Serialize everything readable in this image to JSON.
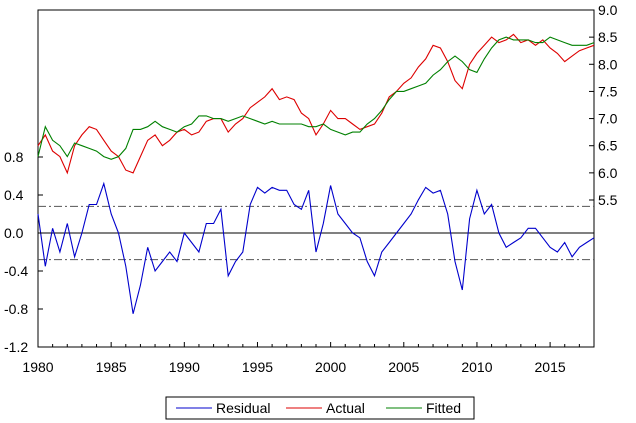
{
  "chart_data": {
    "type": "line",
    "title": "",
    "xlabel": "",
    "ylabel": "",
    "x_range": [
      1980,
      2018
    ],
    "x_ticks": [
      1980,
      1985,
      1990,
      1995,
      2000,
      2005,
      2010,
      2015
    ],
    "x_tick_labels": [
      "1980",
      "1985",
      "1990",
      "1995",
      "2000",
      "2005",
      "2010",
      "2015"
    ],
    "left_axis": {
      "range": [
        -1.2,
        0.8
      ],
      "ticks": [
        -1.2,
        -0.8,
        -0.4,
        0.0,
        0.4,
        0.8
      ],
      "tick_labels": [
        "-1.2",
        "-0.8",
        "-0.4",
        "0.0",
        "0.4",
        "0.8"
      ]
    },
    "right_axis": {
      "range": [
        5.5,
        9.0
      ],
      "ticks": [
        5.5,
        6.0,
        6.5,
        7.0,
        7.5,
        8.0,
        8.5,
        9.0
      ],
      "tick_labels": [
        "5.5",
        "6.0",
        "6.5",
        "7.0",
        "7.5",
        "8.0",
        "8.5",
        "9.0"
      ]
    },
    "reference_lines": [
      {
        "axis": "left",
        "value": 0.0,
        "style": "solid"
      },
      {
        "axis": "left",
        "value": 0.28,
        "style": "dashdot"
      },
      {
        "axis": "left",
        "value": -0.28,
        "style": "dashdot"
      }
    ],
    "grid": false,
    "legend_position": "bottom-center",
    "series": [
      {
        "name": "Residual",
        "axis": "left",
        "color": "#0000cc",
        "x": [
          1980.0,
          1980.5,
          1981.0,
          1981.5,
          1982.0,
          1982.5,
          1983.0,
          1983.5,
          1984.0,
          1984.5,
          1985.0,
          1985.5,
          1986.0,
          1986.5,
          1987.0,
          1987.5,
          1988.0,
          1988.5,
          1989.0,
          1989.5,
          1990.0,
          1990.5,
          1991.0,
          1991.5,
          1992.0,
          1992.5,
          1993.0,
          1993.5,
          1994.0,
          1994.5,
          1995.0,
          1995.5,
          1996.0,
          1996.5,
          1997.0,
          1997.5,
          1998.0,
          1998.5,
          1999.0,
          1999.5,
          2000.0,
          2000.5,
          2001.0,
          2001.5,
          2002.0,
          2002.5,
          2003.0,
          2003.5,
          2004.0,
          2004.5,
          2005.0,
          2005.5,
          2006.0,
          2006.5,
          2007.0,
          2007.5,
          2008.0,
          2008.5,
          2009.0,
          2009.5,
          2010.0,
          2010.5,
          2011.0,
          2011.5,
          2012.0,
          2012.5,
          2013.0,
          2013.5,
          2014.0,
          2014.5,
          2015.0,
          2015.5,
          2016.0,
          2016.5,
          2017.0,
          2017.5,
          2018.0
        ],
        "values": [
          0.2,
          -0.35,
          0.05,
          -0.2,
          0.1,
          -0.25,
          0.0,
          0.3,
          0.3,
          0.52,
          0.2,
          0.0,
          -0.35,
          -0.85,
          -0.55,
          -0.15,
          -0.4,
          -0.3,
          -0.2,
          -0.3,
          0.0,
          -0.1,
          -0.2,
          0.1,
          0.1,
          0.25,
          -0.45,
          -0.3,
          -0.2,
          0.3,
          0.48,
          0.42,
          0.48,
          0.45,
          0.45,
          0.3,
          0.25,
          0.45,
          -0.2,
          0.1,
          0.5,
          0.2,
          0.1,
          0.0,
          -0.05,
          -0.3,
          -0.45,
          -0.2,
          -0.1,
          0.0,
          0.1,
          0.2,
          0.35,
          0.48,
          0.42,
          0.45,
          0.2,
          -0.3,
          -0.6,
          0.15,
          0.45,
          0.2,
          0.3,
          0.0,
          -0.15,
          -0.1,
          -0.05,
          0.05,
          0.05,
          -0.05,
          -0.15,
          -0.2,
          -0.1,
          -0.25,
          -0.15,
          -0.1,
          -0.05
        ]
      },
      {
        "name": "Actual",
        "axis": "right",
        "color": "#dd0000",
        "x": [
          1980.0,
          1980.5,
          1981.0,
          1981.5,
          1982.0,
          1982.5,
          1983.0,
          1983.5,
          1984.0,
          1984.5,
          1985.0,
          1985.5,
          1986.0,
          1986.5,
          1987.0,
          1987.5,
          1988.0,
          1988.5,
          1989.0,
          1989.5,
          1990.0,
          1990.5,
          1991.0,
          1991.5,
          1992.0,
          1992.5,
          1993.0,
          1993.5,
          1994.0,
          1994.5,
          1995.0,
          1995.5,
          1996.0,
          1996.5,
          1997.0,
          1997.5,
          1998.0,
          1998.5,
          1999.0,
          1999.5,
          2000.0,
          2000.5,
          2001.0,
          2001.5,
          2002.0,
          2002.5,
          2003.0,
          2003.5,
          2004.0,
          2004.5,
          2005.0,
          2005.5,
          2006.0,
          2006.5,
          2007.0,
          2007.5,
          2008.0,
          2008.5,
          2009.0,
          2009.5,
          2010.0,
          2010.5,
          2011.0,
          2011.5,
          2012.0,
          2012.5,
          2013.0,
          2013.5,
          2014.0,
          2014.5,
          2015.0,
          2015.5,
          2016.0,
          2016.5,
          2017.0,
          2017.5,
          2018.0
        ],
        "values": [
          6.5,
          6.7,
          6.4,
          6.3,
          6.0,
          6.5,
          6.7,
          6.85,
          6.8,
          6.6,
          6.4,
          6.3,
          6.05,
          6.0,
          6.3,
          6.6,
          6.7,
          6.5,
          6.6,
          6.75,
          6.8,
          6.7,
          6.75,
          6.95,
          7.0,
          7.0,
          6.75,
          6.9,
          7.0,
          7.2,
          7.3,
          7.4,
          7.55,
          7.35,
          7.4,
          7.35,
          7.1,
          7.0,
          6.7,
          6.9,
          7.15,
          7.0,
          7.0,
          6.9,
          6.8,
          6.85,
          6.9,
          7.1,
          7.4,
          7.5,
          7.65,
          7.75,
          7.95,
          8.1,
          8.35,
          8.3,
          8.05,
          7.7,
          7.55,
          8.0,
          8.2,
          8.35,
          8.5,
          8.4,
          8.45,
          8.55,
          8.4,
          8.45,
          8.35,
          8.45,
          8.3,
          8.2,
          8.05,
          8.15,
          8.25,
          8.3,
          8.35
        ]
      },
      {
        "name": "Fitted",
        "axis": "right",
        "color": "#008000",
        "x": [
          1980.0,
          1980.5,
          1981.0,
          1981.5,
          1982.0,
          1982.5,
          1983.0,
          1983.5,
          1984.0,
          1984.5,
          1985.0,
          1985.5,
          1986.0,
          1986.5,
          1987.0,
          1987.5,
          1988.0,
          1988.5,
          1989.0,
          1989.5,
          1990.0,
          1990.5,
          1991.0,
          1991.5,
          1992.0,
          1992.5,
          1993.0,
          1993.5,
          1994.0,
          1994.5,
          1995.0,
          1995.5,
          1996.0,
          1996.5,
          1997.0,
          1997.5,
          1998.0,
          1998.5,
          1999.0,
          1999.5,
          2000.0,
          2000.5,
          2001.0,
          2001.5,
          2002.0,
          2002.5,
          2003.0,
          2003.5,
          2004.0,
          2004.5,
          2005.0,
          2005.5,
          2006.0,
          2006.5,
          2007.0,
          2007.5,
          2008.0,
          2008.5,
          2009.0,
          2009.5,
          2010.0,
          2010.5,
          2011.0,
          2011.5,
          2012.0,
          2012.5,
          2013.0,
          2013.5,
          2014.0,
          2014.5,
          2015.0,
          2015.5,
          2016.0,
          2016.5,
          2017.0,
          2017.5,
          2018.0
        ],
        "values": [
          6.3,
          6.85,
          6.6,
          6.5,
          6.3,
          6.55,
          6.5,
          6.45,
          6.4,
          6.3,
          6.25,
          6.3,
          6.45,
          6.8,
          6.8,
          6.85,
          6.95,
          6.85,
          6.8,
          6.75,
          6.85,
          6.9,
          7.05,
          7.05,
          7.0,
          7.0,
          6.95,
          7.0,
          7.05,
          7.0,
          6.95,
          6.9,
          6.95,
          6.9,
          6.9,
          6.9,
          6.9,
          6.85,
          6.85,
          6.9,
          6.8,
          6.75,
          6.7,
          6.75,
          6.75,
          6.9,
          7.0,
          7.15,
          7.35,
          7.5,
          7.5,
          7.55,
          7.6,
          7.65,
          7.8,
          7.9,
          8.05,
          8.15,
          8.05,
          7.9,
          7.85,
          8.1,
          8.3,
          8.45,
          8.5,
          8.45,
          8.45,
          8.45,
          8.4,
          8.4,
          8.5,
          8.45,
          8.4,
          8.35,
          8.35,
          8.35,
          8.4
        ]
      }
    ],
    "legend": [
      {
        "label": "Residual",
        "color": "#0000cc"
      },
      {
        "label": "Actual",
        "color": "#dd0000"
      },
      {
        "label": "Fitted",
        "color": "#008000"
      }
    ]
  }
}
